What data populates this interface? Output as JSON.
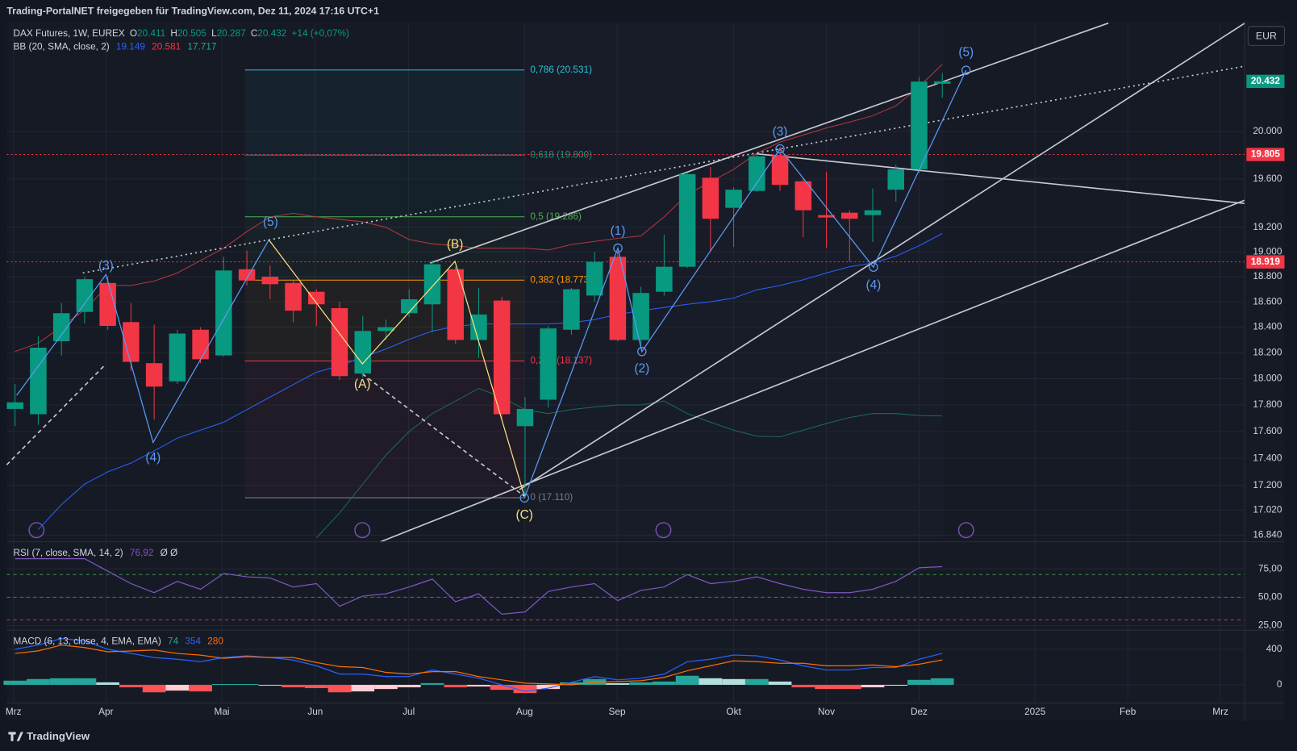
{
  "top_bar": "Trading-PortalNET freigegeben für TradingView.com, Dez 11, 2024 17:16 UTC+1",
  "footer": "TradingView",
  "currency_button": "EUR",
  "chart_data": [
    {
      "type": "candlestick",
      "title": "DAX Futures, 1W, EUREX",
      "ohlc_legend": [
        {
          "key": "O",
          "value": "20.411"
        },
        {
          "key": "H",
          "value": "20.505"
        },
        {
          "key": "L",
          "value": "20.287"
        },
        {
          "key": "C",
          "value": "20.432"
        }
      ],
      "change_label": "+14 (+0,07%)",
      "open": [
        17770,
        17730,
        18290,
        18520,
        18750,
        18440,
        18120,
        17980,
        18380,
        18180,
        18860,
        18800,
        18750,
        18680,
        18550,
        18040,
        18370,
        18510,
        18580,
        18860,
        18300,
        18610,
        17640,
        17840,
        18380,
        18650,
        18960,
        18300,
        18680,
        18880,
        19610,
        19360,
        19500,
        19800,
        19580,
        19300,
        19320,
        19300,
        19510,
        19680,
        20411
      ],
      "high": [
        17960,
        18330,
        18590,
        18800,
        18800,
        18590,
        18420,
        18380,
        18400,
        18960,
        19010,
        18890,
        18770,
        18700,
        18600,
        18490,
        18460,
        18700,
        18930,
        18880,
        18710,
        18640,
        17860,
        18410,
        18710,
        19000,
        19000,
        18720,
        19140,
        19650,
        19700,
        19530,
        19810,
        19870,
        19600,
        19660,
        19340,
        19520,
        19720,
        20470,
        20505
      ],
      "low": [
        17640,
        17650,
        18180,
        18430,
        18380,
        18060,
        17690,
        17960,
        18120,
        18170,
        18730,
        18620,
        18440,
        18410,
        17990,
        18010,
        18300,
        18480,
        18360,
        18270,
        18160,
        17690,
        17110,
        17780,
        18340,
        18600,
        18290,
        18230,
        18650,
        18870,
        19000,
        19040,
        19490,
        19500,
        19120,
        19030,
        18920,
        19080,
        19410,
        19650,
        20287
      ],
      "close": [
        17820,
        18240,
        18510,
        18780,
        18410,
        18130,
        17940,
        18350,
        18150,
        18850,
        18770,
        18740,
        18530,
        18580,
        18020,
        18370,
        18400,
        18620,
        18900,
        18300,
        18500,
        17730,
        17770,
        18390,
        18700,
        18920,
        18300,
        18670,
        18880,
        19640,
        19270,
        19510,
        19790,
        19550,
        19340,
        19280,
        19270,
        19340,
        19680,
        20430,
        20432
      ],
      "up_color": "#089981",
      "down_color": "#f23645",
      "log_scale": true,
      "grid": true,
      "ylim": [
        16810,
        20945
      ],
      "yticks": [
        {
          "value": 20000,
          "label": "20.000"
        },
        {
          "value": 19600,
          "label": "19.600"
        },
        {
          "value": 19200,
          "label": "19.200"
        },
        {
          "value": 19000,
          "label": "19.000"
        },
        {
          "value": 18800,
          "label": "18.800"
        },
        {
          "value": 18600,
          "label": "18.600"
        },
        {
          "value": 18400,
          "label": "18.400"
        },
        {
          "value": 18200,
          "label": "18.200"
        },
        {
          "value": 18000,
          "label": "18.000"
        },
        {
          "value": 17800,
          "label": "17.800"
        },
        {
          "value": 17600,
          "label": "17.600"
        },
        {
          "value": 17400,
          "label": "17.400"
        },
        {
          "value": 17200,
          "label": "17.200"
        },
        {
          "value": 17020,
          "label": "17.020"
        },
        {
          "value": 16840,
          "label": "16.840"
        }
      ],
      "xlim": [
        -0.36,
        53.05
      ],
      "xticks": [
        {
          "value": -0.07,
          "label": "Mrz"
        },
        {
          "value": 3.92,
          "label": "Apr"
        },
        {
          "value": 8.92,
          "label": "Mai"
        },
        {
          "value": 12.95,
          "label": "Jun"
        },
        {
          "value": 16.98,
          "label": "Jul"
        },
        {
          "value": 21.98,
          "label": "Aug"
        },
        {
          "value": 25.97,
          "label": "Sep"
        },
        {
          "value": 31.0,
          "label": "Okt"
        },
        {
          "value": 35.0,
          "label": "Nov"
        },
        {
          "value": 39.0,
          "label": "Dez"
        },
        {
          "value": 44.0,
          "label": "2025"
        },
        {
          "value": 48.0,
          "label": "Feb"
        },
        {
          "value": 52.0,
          "label": "Mrz"
        }
      ],
      "indicator_label": "BB (20, SMA, close, 2)",
      "series": [
        {
          "color": "#2962ff",
          "values": [
            null,
            16880,
            17060,
            17210,
            17300,
            17365,
            17455,
            17550,
            17610,
            17670,
            17765,
            17860,
            17955,
            18050,
            18100,
            18165,
            18230,
            18305,
            18370,
            18405,
            18425,
            18425,
            18425,
            18425,
            18435,
            18460,
            18500,
            18530,
            18555,
            18580,
            18600,
            18630,
            18695,
            18730,
            18775,
            18830,
            18880,
            18910,
            18965,
            19050,
            19149
          ],
          "last_label": "19.149"
        },
        {
          "color": "#b2383f",
          "values": [
            18210,
            18275,
            18405,
            18535,
            18730,
            18730,
            18765,
            18830,
            18930,
            19030,
            19165,
            19285,
            19315,
            19285,
            19265,
            19245,
            19200,
            19100,
            19065,
            19050,
            19030,
            19030,
            19030,
            19015,
            19060,
            19085,
            19110,
            19130,
            19285,
            19470,
            19575,
            19680,
            19815,
            19910,
            19970,
            20030,
            20080,
            20135,
            20220,
            20385,
            20581
          ],
          "last_label": "20.581"
        },
        {
          "color": "#1b6b57",
          "values": [
            null,
            null,
            null,
            null,
            null,
            null,
            null,
            null,
            null,
            null,
            null,
            null,
            null,
            16820,
            17000,
            17210,
            17425,
            17600,
            17735,
            17830,
            17925,
            17860,
            17765,
            17735,
            17765,
            17785,
            17800,
            17800,
            17830,
            17735,
            17670,
            17610,
            17565,
            17560,
            17610,
            17660,
            17705,
            17735,
            17735,
            17720,
            17717
          ],
          "last_label": "17.717"
        }
      ],
      "fib_levels": [
        {
          "label": "0,786 (20.531)",
          "value": 20531,
          "color": "#26c6da"
        },
        {
          "label": "0,618 (19.800)",
          "value": 19800,
          "color": "#089981"
        },
        {
          "label": "0,5 (19.286)",
          "value": 19286,
          "color": "#4caf50"
        },
        {
          "label": "0,382 (18.773)",
          "value": 18773,
          "color": "#ff9800"
        },
        {
          "label": "0,236 (18.137)",
          "value": 18137,
          "color": "#f23645"
        },
        {
          "label": "0 (17.110)",
          "value": 17110,
          "color": "#787b86"
        }
      ],
      "price_lines": [
        {
          "value": 19805,
          "label": "19.805",
          "color": "#f23645"
        },
        {
          "value": 18919,
          "label": "18.919",
          "color": "#f23645"
        }
      ],
      "last_price_label": "20.432",
      "wave_labels": [
        "(3)",
        "(4)",
        "(5)",
        "(A)",
        "(B)",
        "(C)",
        "(1)",
        "(2)",
        "(3)",
        "(4)",
        "(5)"
      ]
    },
    {
      "type": "line",
      "title": "RSI (7, close, SMA, 14, 2)",
      "value_label": "76,92",
      "extra_label": "Ø Ø",
      "color": "#7e57c2",
      "values": [
        84,
        84,
        84,
        84,
        73,
        62,
        54,
        64,
        57,
        71,
        68,
        67,
        59,
        62,
        42,
        51,
        53,
        59,
        66,
        46,
        53,
        35,
        37,
        55,
        59,
        62,
        47,
        56,
        59,
        70,
        62,
        64,
        68,
        62,
        57,
        54,
        54,
        57,
        64,
        76,
        76.92
      ],
      "ylim": [
        22.3,
        95.3
      ],
      "yticks": [
        {
          "value": 75,
          "label": "75,00"
        },
        {
          "value": 50,
          "label": "50,00"
        },
        {
          "value": 25,
          "label": "25,00"
        }
      ],
      "bands": [
        {
          "value": 70,
          "color": "#4caf50"
        },
        {
          "value": 50,
          "color": "#787b86"
        },
        {
          "value": 30,
          "color": "#f23645"
        }
      ]
    },
    {
      "type": "macd",
      "title": "MACD (6, 13, close, 4, EMA, EMA)",
      "histogram": [
        47,
        65,
        74,
        74,
        28,
        -28,
        -84,
        -65,
        -74,
        9,
        9,
        0,
        -28,
        -37,
        -84,
        -74,
        -47,
        -28,
        19,
        -28,
        -19,
        -56,
        -93,
        -47,
        28,
        65,
        19,
        28,
        37,
        102,
        74,
        65,
        65,
        37,
        -28,
        -47,
        -47,
        -28,
        -9,
        56,
        74
      ],
      "histogram_colors": {
        "up_rising": "#26a69a",
        "up_falling": "#b2dfdb",
        "down_falling": "#ff5252",
        "down_rising": "#ffcdd2"
      },
      "series": [
        {
          "color": "#2962ff",
          "values": [
            400,
            447,
            521,
            493,
            400,
            353,
            307,
            288,
            260,
            307,
            326,
            307,
            279,
            214,
            121,
            121,
            93,
            93,
            167,
            121,
            74,
            0,
            -74,
            -37,
            28,
            93,
            56,
            74,
            121,
            260,
            288,
            335,
            326,
            279,
            214,
            167,
            167,
            195,
            195,
            288,
            354
          ]
        },
        {
          "color": "#ff6d00",
          "values": [
            353,
            382,
            447,
            419,
            372,
            381,
            391,
            353,
            334,
            298,
            317,
            307,
            307,
            251,
            205,
            195,
            140,
            121,
            148,
            149,
            93,
            56,
            19,
            10,
            0,
            28,
            37,
            46,
            84,
            158,
            214,
            270,
            261,
            242,
            242,
            214,
            214,
            223,
            204,
            232,
            280
          ]
        }
      ],
      "ylim": [
        -186,
        586
      ],
      "yticks": [
        400,
        0
      ]
    }
  ]
}
